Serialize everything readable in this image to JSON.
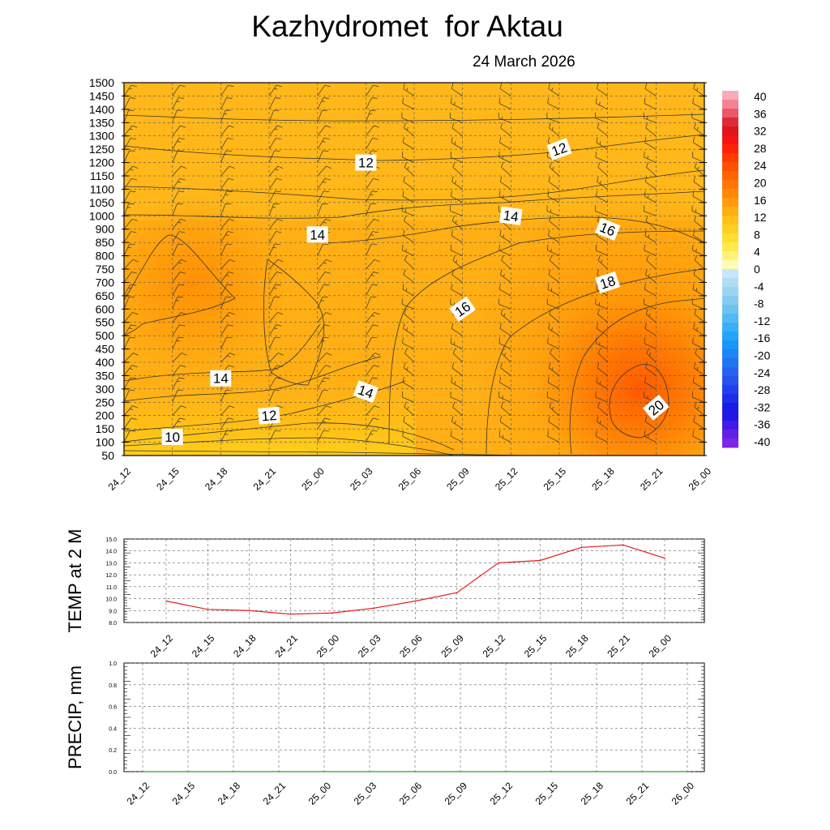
{
  "title": "Kazhydromet  for Aktau",
  "date": "24 March 2026",
  "chart_data": [
    {
      "type": "heatmap",
      "title": "Kazhydromet  for Aktau",
      "subtitle": "24 March 2026",
      "description_variable": "air temperature contours with wind barbs by pressure level",
      "x": [
        "24_12",
        "24_15",
        "24_18",
        "24_21",
        "25_00",
        "25_03",
        "25_06",
        "25_09",
        "25_12",
        "25_15",
        "25_18",
        "25_21",
        "26_00"
      ],
      "y_levels": [
        50,
        100,
        150,
        200,
        250,
        300,
        350,
        400,
        450,
        500,
        550,
        600,
        650,
        700,
        750,
        800,
        850,
        900,
        1000,
        1050,
        1100,
        1150,
        1200,
        1250,
        1300,
        1350,
        1400,
        1450,
        1500
      ],
      "ylim": [
        50,
        1500
      ],
      "contour_labels": [
        {
          "label": "10",
          "x": "24_15",
          "level": 120
        },
        {
          "label": "12",
          "x": "24_21",
          "level": 200
        },
        {
          "label": "14",
          "x": "24_18",
          "level": 340
        },
        {
          "label": "14",
          "x": "25_03",
          "level": 290
        },
        {
          "label": "14",
          "x": "25_00",
          "level": 880
        },
        {
          "label": "12",
          "x": "25_03",
          "level": 1200
        },
        {
          "label": "14",
          "x": "25_12",
          "level": 1000
        },
        {
          "label": "12",
          "x": "25_15",
          "level": 1250
        },
        {
          "label": "16",
          "x": "25_09",
          "level": 600
        },
        {
          "label": "16",
          "x": "25_18",
          "level": 900
        },
        {
          "label": "18",
          "x": "25_18",
          "level": 700
        },
        {
          "label": "20",
          "x": "25_21",
          "level": 230
        }
      ],
      "colorbar": {
        "labels": [
          "40",
          "36",
          "32",
          "28",
          "24",
          "20",
          "16",
          "12",
          "8",
          "4",
          "0",
          "-4",
          "-8",
          "-12",
          "-16",
          "-20",
          "-24",
          "-28",
          "-32",
          "-36",
          "-40"
        ],
        "values": [
          40,
          36,
          32,
          28,
          24,
          20,
          16,
          12,
          8,
          4,
          0,
          -4,
          -8,
          -12,
          -16,
          -20,
          -24,
          -28,
          -32,
          -36,
          -40
        ]
      },
      "field_range": [
        10,
        21
      ]
    },
    {
      "type": "line",
      "ylabel": "TEMP at 2 M",
      "categories": [
        "24_12",
        "24_15",
        "24_18",
        "24_21",
        "25_00",
        "25_03",
        "25_06",
        "25_09",
        "25_12",
        "25_15",
        "25_18",
        "25_21",
        "26_00"
      ],
      "values": [
        9.8,
        9.1,
        9.0,
        8.7,
        8.8,
        9.2,
        9.8,
        10.5,
        13.0,
        13.2,
        14.3,
        14.5,
        13.4
      ],
      "ylim": [
        8.0,
        15.0
      ],
      "ytick_labels": [
        "8.0",
        "9.0",
        "10.0",
        "11.0",
        "12.0",
        "13.0",
        "14.0",
        "15.0"
      ],
      "line_color": "#e41a1c"
    },
    {
      "type": "line",
      "ylabel": "PRECIP, mm",
      "categories": [
        "24_12",
        "24_15",
        "24_18",
        "24_21",
        "25_00",
        "25_03",
        "25_06",
        "25_09",
        "25_12",
        "25_15",
        "25_18",
        "25_21",
        "26_00"
      ],
      "values": [
        0,
        0,
        0,
        0,
        0,
        0,
        0,
        0,
        0,
        0,
        0,
        0,
        0
      ],
      "ylim": [
        0.0,
        1.0
      ],
      "ytick_labels": [
        "0.0",
        "0.2",
        "0.4",
        "0.6",
        "0.8",
        "1.0"
      ],
      "line_color": "#2ca02c"
    }
  ]
}
